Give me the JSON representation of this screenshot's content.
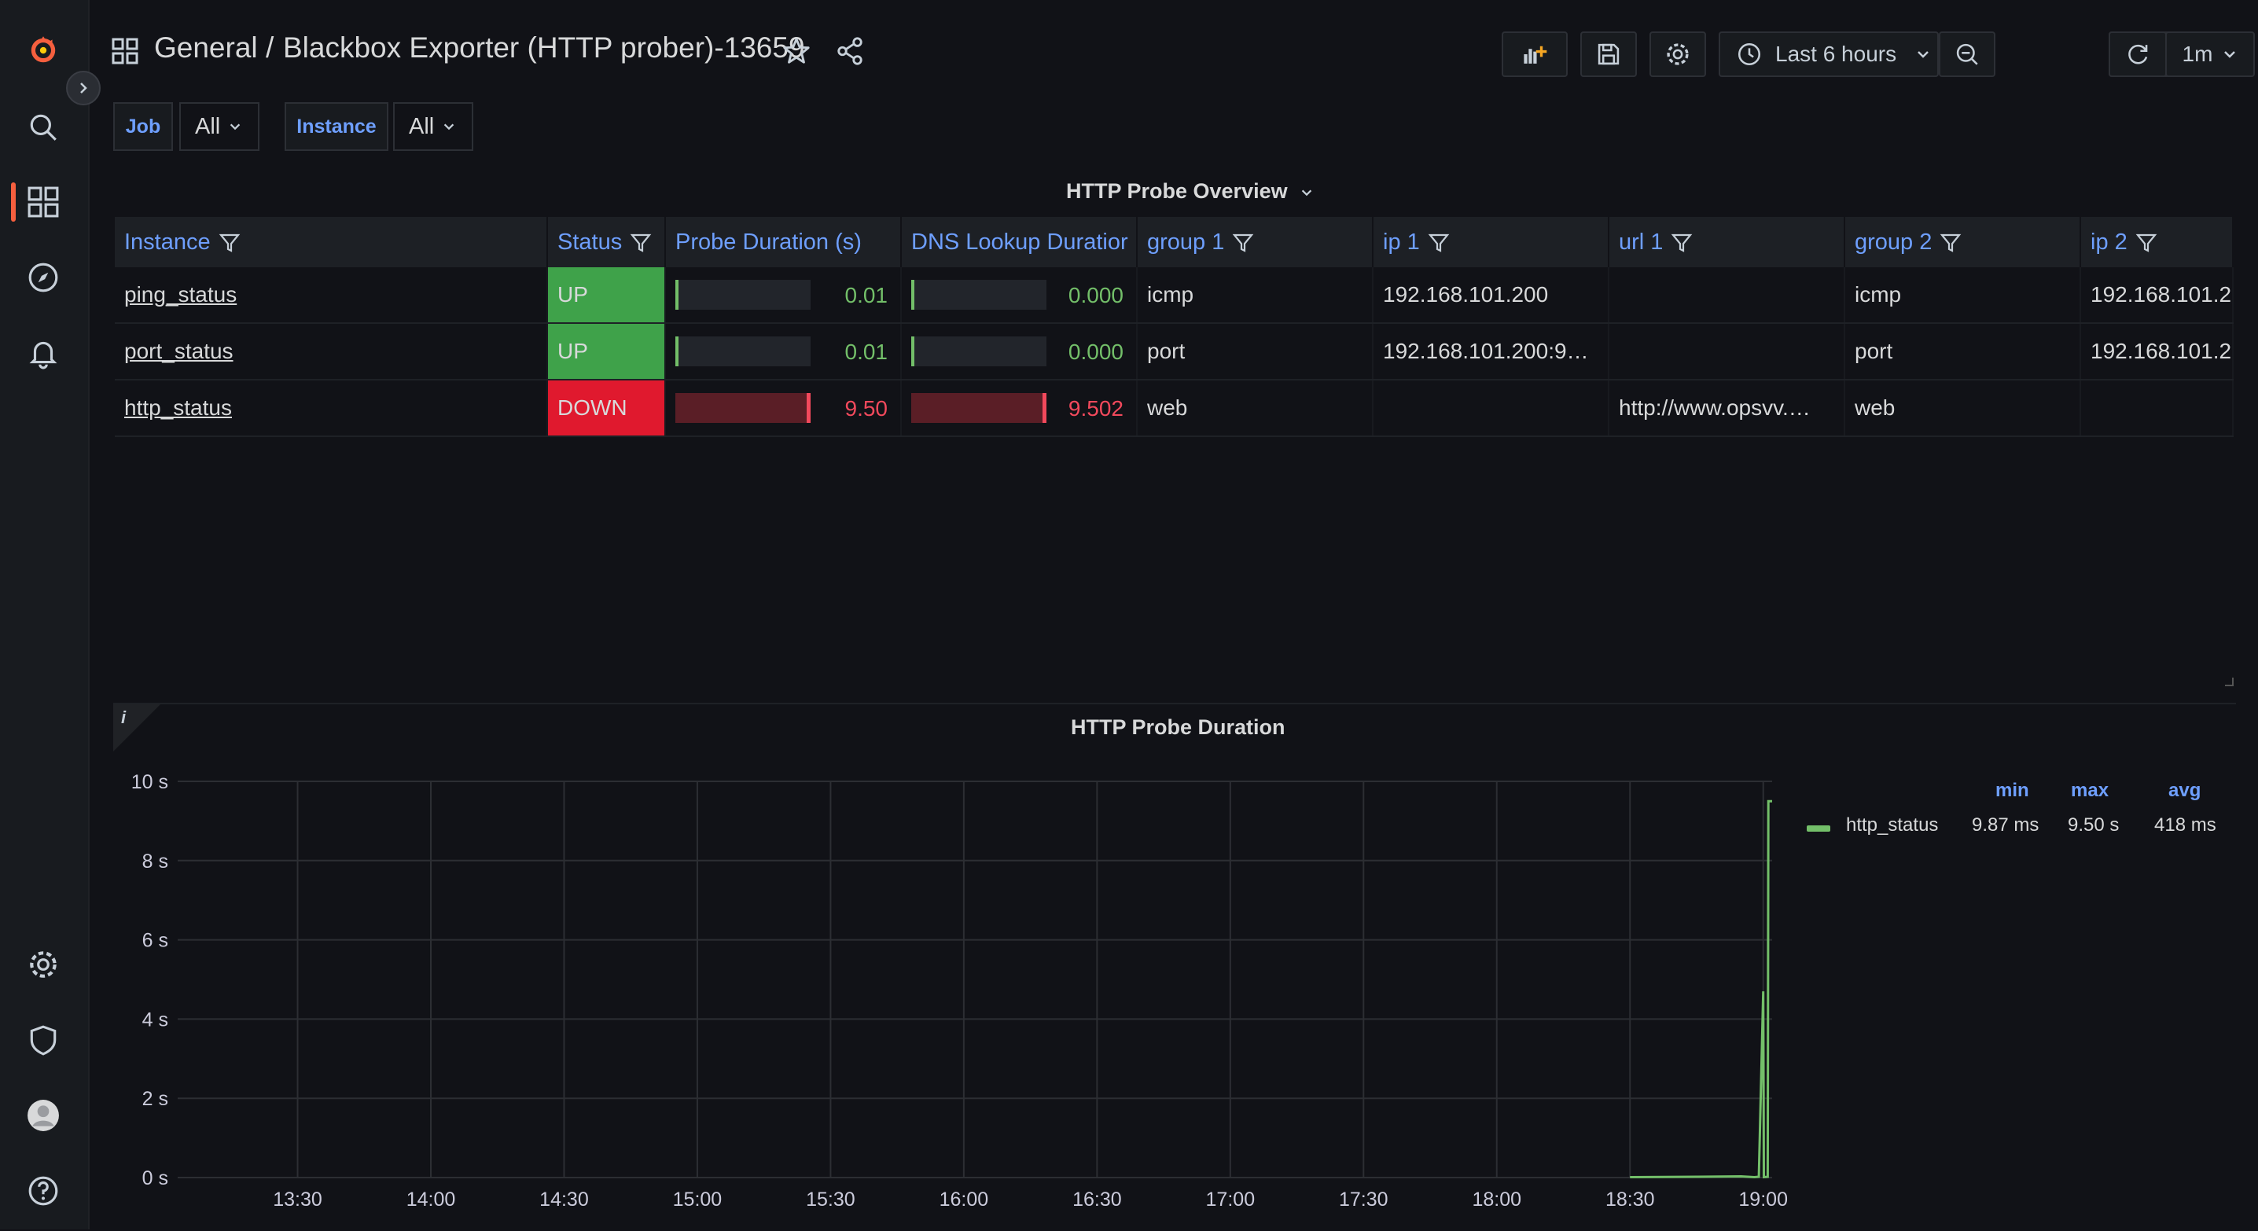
{
  "breadcrumb": {
    "folder": "General",
    "separator": "/",
    "dashboard": "Blackbox Exporter (HTTP prober)-13659"
  },
  "toolbar": {
    "time_range": "Last 6 hours",
    "refresh_interval": "1m"
  },
  "variables": [
    {
      "label": "Job",
      "value": "All"
    },
    {
      "label": "Instance",
      "value": "All"
    }
  ],
  "table_panel": {
    "title": "HTTP Probe Overview",
    "columns": [
      "Instance",
      "Status",
      "Probe Duration (s)",
      "DNS Lookup Duratior",
      "group 1",
      "ip 1",
      "url 1",
      "group 2",
      "ip 2"
    ],
    "rows": [
      {
        "instance": "ping_status",
        "status": "UP",
        "probe_duration": "0.01",
        "probe_fraction": 0.01,
        "dns_lookup": "0.000",
        "dns_fraction": 0.0,
        "group1": "icmp",
        "ip1": "192.168.101.200",
        "url1": "",
        "group2": "icmp",
        "ip2": "192.168.101.2"
      },
      {
        "instance": "port_status",
        "status": "UP",
        "probe_duration": "0.01",
        "probe_fraction": 0.01,
        "dns_lookup": "0.000",
        "dns_fraction": 0.0,
        "group1": "port",
        "ip1": "192.168.101.200:9…",
        "url1": "",
        "group2": "port",
        "ip2": "192.168.101.2"
      },
      {
        "instance": "http_status",
        "status": "DOWN",
        "probe_duration": "9.50",
        "probe_fraction": 1.0,
        "dns_lookup": "9.502",
        "dns_fraction": 1.0,
        "group1": "web",
        "ip1": "",
        "url1": "http://www.opsvv.…",
        "group2": "web",
        "ip2": ""
      }
    ]
  },
  "colors": {
    "accent_blue": "#6e9fff",
    "ok_green": "#3fa24a",
    "bad_red": "#e0192e",
    "series_green": "#73bf69",
    "grafana_orange": "#f55f3e"
  },
  "graph_panel": {
    "title": "HTTP Probe Duration",
    "info_glyph": "i",
    "legend": {
      "headers": [
        "min",
        "max",
        "avg"
      ],
      "items": [
        {
          "name": "http_status",
          "min": "9.87 ms",
          "max": "9.50 s",
          "avg": "418 ms"
        }
      ]
    }
  },
  "chart_data": {
    "type": "line",
    "title": "HTTP Probe Duration",
    "xlabel": "",
    "ylabel": "",
    "x_ticks": [
      "13:30",
      "14:00",
      "14:30",
      "15:00",
      "15:30",
      "16:00",
      "16:30",
      "17:00",
      "17:30",
      "18:00",
      "18:30",
      "19:00"
    ],
    "y_ticks": [
      "0 s",
      "2 s",
      "4 s",
      "6 s",
      "8 s",
      "10 s"
    ],
    "ylim": [
      0,
      10
    ],
    "xlim": [
      "13:03",
      "19:02"
    ],
    "grid": true,
    "legend_position": "right",
    "series": [
      {
        "name": "http_status",
        "x": [
          "18:30",
          "18:45",
          "18:55",
          "18:58",
          "18:59",
          "19:00",
          "19:00",
          "19:01",
          "19:01",
          "19:02"
        ],
        "values": [
          0.01,
          0.02,
          0.03,
          0.01,
          0.02,
          4.7,
          0.01,
          0.02,
          9.5,
          9.5
        ]
      }
    ]
  }
}
